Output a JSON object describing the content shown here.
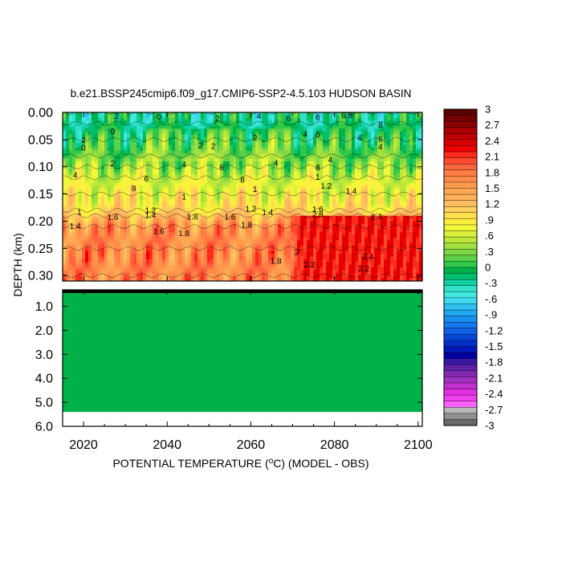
{
  "chart_data": {
    "type": "heatmap",
    "title": "b.e21.BSSP245cmip6.f09_g17.CMIP6-SSP2-4.5.103 HUDSON BASIN",
    "xlabel_prefix": "POTENTIAL TEMPERATURE (",
    "xlabel_unit_sup": "o",
    "xlabel_suffix": "C) (MODEL - OBS)",
    "ylabel": "DEPTH (km)",
    "xlim": [
      2015,
      2101
    ],
    "x_ticks": [
      "2020",
      "2040",
      "2060",
      "2080",
      "2100"
    ],
    "x_tick_values": [
      2020,
      2040,
      2060,
      2080,
      2100
    ],
    "upper_panel": {
      "ylim": [
        0.0,
        0.31
      ],
      "y_ticks": [
        "0.00",
        "0.05",
        "0.10",
        "0.15",
        "0.20",
        "0.25",
        "0.30"
      ],
      "y_tick_values": [
        0.0,
        0.05,
        0.1,
        0.15,
        0.2,
        0.25,
        0.3
      ],
      "depth_profile": [
        {
          "depth": 0.0,
          "value": -0.2
        },
        {
          "depth": 0.02,
          "value": -0.2
        },
        {
          "depth": 0.05,
          "value": 0.0
        },
        {
          "depth": 0.08,
          "value": 0.2
        },
        {
          "depth": 0.1,
          "value": 0.4
        },
        {
          "depth": 0.12,
          "value": 0.6
        },
        {
          "depth": 0.15,
          "value": 0.8
        },
        {
          "depth": 0.18,
          "value": 1.0
        },
        {
          "depth": 0.19,
          "value": 1.2
        },
        {
          "depth": 0.21,
          "value": 1.6
        },
        {
          "depth": 0.25,
          "value": 1.7
        },
        {
          "depth": 0.3,
          "value": 1.7
        }
      ],
      "late_period": {
        "start_year": 2068,
        "deep_value": 2.2
      },
      "contour_labels": [
        {
          "text": "2",
          "x": 2028,
          "y": 0.012
        },
        {
          "text": "0",
          "x": 2038,
          "y": 0.013
        },
        {
          "text": "2",
          "x": 2052,
          "y": 0.016
        },
        {
          "text": "4",
          "x": 2062,
          "y": 0.012
        },
        {
          "text": "6",
          "x": 2069,
          "y": 0.016
        },
        {
          "text": "6",
          "x": 2076,
          "y": 0.014
        },
        {
          "text": "6.8",
          "x": 2083,
          "y": 0.01
        },
        {
          "text": "8",
          "x": 2091,
          "y": 0.028
        },
        {
          "text": "0",
          "x": 2027,
          "y": 0.04
        },
        {
          "text": "2",
          "x": 2020,
          "y": 0.056
        },
        {
          "text": "0",
          "x": 2020,
          "y": 0.07
        },
        {
          "text": "4",
          "x": 2073,
          "y": 0.045
        },
        {
          "text": "6",
          "x": 2076,
          "y": 0.046
        },
        {
          "text": "2",
          "x": 2048,
          "y": 0.066
        },
        {
          "text": "2",
          "x": 2051,
          "y": 0.067
        },
        {
          "text": "2",
          "x": 2061,
          "y": 0.052
        },
        {
          "text": "4",
          "x": 2086,
          "y": 0.052
        },
        {
          "text": "6",
          "x": 2091,
          "y": 0.054
        },
        {
          "text": "4",
          "x": 2091,
          "y": 0.069
        },
        {
          "text": "2",
          "x": 2027,
          "y": 0.099
        },
        {
          "text": "4",
          "x": 2044,
          "y": 0.101
        },
        {
          "text": "6",
          "x": 2053,
          "y": 0.106
        },
        {
          "text": "4",
          "x": 2066,
          "y": 0.098
        },
        {
          "text": "4",
          "x": 2079,
          "y": 0.092
        },
        {
          "text": "8",
          "x": 2076,
          "y": 0.106
        },
        {
          "text": "4",
          "x": 2018,
          "y": 0.12
        },
        {
          "text": "6",
          "x": 2035,
          "y": 0.127
        },
        {
          "text": "8",
          "x": 2058,
          "y": 0.129
        },
        {
          "text": "1",
          "x": 2076,
          "y": 0.124
        },
        {
          "text": "8",
          "x": 2032,
          "y": 0.145
        },
        {
          "text": "1",
          "x": 2061,
          "y": 0.146
        },
        {
          "text": "1.2",
          "x": 2078,
          "y": 0.14
        },
        {
          "text": "1.4",
          "x": 2084,
          "y": 0.15
        },
        {
          "text": "1",
          "x": 2044,
          "y": 0.16
        },
        {
          "text": "1",
          "x": 2019,
          "y": 0.188
        },
        {
          "text": "1.6",
          "x": 2027,
          "y": 0.198
        },
        {
          "text": "1.2",
          "x": 2036,
          "y": 0.185
        },
        {
          "text": "1.4",
          "x": 2036,
          "y": 0.194
        },
        {
          "text": "1.8",
          "x": 2046,
          "y": 0.197
        },
        {
          "text": "1.6",
          "x": 2055,
          "y": 0.197
        },
        {
          "text": "1.2",
          "x": 2060,
          "y": 0.182
        },
        {
          "text": "1.4",
          "x": 2064,
          "y": 0.189
        },
        {
          "text": "1.6",
          "x": 2076,
          "y": 0.183
        },
        {
          "text": "2.8",
          "x": 2076,
          "y": 0.193
        },
        {
          "text": "2.4",
          "x": 2090,
          "y": 0.197
        },
        {
          "text": "1.4",
          "x": 2018,
          "y": 0.214
        },
        {
          "text": "1.8",
          "x": 2059,
          "y": 0.212
        },
        {
          "text": "1.6",
          "x": 2038,
          "y": 0.224
        },
        {
          "text": "1.8",
          "x": 2044,
          "y": 0.227
        },
        {
          "text": "1.8",
          "x": 2066,
          "y": 0.278
        },
        {
          "text": "2",
          "x": 2071,
          "y": 0.262
        },
        {
          "text": "2.2",
          "x": 2074,
          "y": 0.285
        },
        {
          "text": "2.4",
          "x": 2088,
          "y": 0.27
        },
        {
          "text": "2.2",
          "x": 2087,
          "y": 0.292
        }
      ]
    },
    "lower_panel": {
      "ylim": [
        0.31,
        6.0
      ],
      "y_ticks": [
        "1.0",
        "2.0",
        "3.0",
        "4.0",
        "5.0",
        "6.0"
      ],
      "y_tick_values": [
        1.0,
        2.0,
        3.0,
        4.0,
        5.0,
        6.0
      ],
      "fill_value": 0.0,
      "data_bottom": 5.4
    },
    "colorbar": {
      "levels": [
        "3",
        "2.7",
        "2.4",
        "2.1",
        "1.8",
        "1.5",
        "1.2",
        ".9",
        ".6",
        ".3",
        "0",
        "-.3",
        "-.6",
        "-.9",
        "-1.2",
        "-1.5",
        "-1.8",
        "-2.1",
        "-2.4",
        "-2.7",
        "-3"
      ],
      "colors": [
        "#5a0000",
        "#720000",
        "#8c0000",
        "#a60000",
        "#c00000",
        "#d80000",
        "#ee0000",
        "#ff2a1a",
        "#ff4a30",
        "#ff6640",
        "#ff7c44",
        "#ff8c48",
        "#ff9a4c",
        "#ffa652",
        "#ffb25a",
        "#ffbe62",
        "#ffcf5c",
        "#ffe04c",
        "#fff040",
        "#f0f838",
        "#d8f038",
        "#bde838",
        "#a0e040",
        "#80d844",
        "#5cd048",
        "#30c848",
        "#00b048",
        "#00c070",
        "#10d0a0",
        "#30e0c8",
        "#40e8e0",
        "#40d8f0",
        "#30c0f0",
        "#20a8f0",
        "#1890f0",
        "#1878f0",
        "#1060e8",
        "#0848d8",
        "#0030c8",
        "#0018b8",
        "#0000a0",
        "#3818a0",
        "#6020a8",
        "#8028b0",
        "#a030c0",
        "#c030d0",
        "#e030e0",
        "#f040f0",
        "#ff60ff",
        "#b8b8b8",
        "#909090",
        "#686868"
      ]
    }
  }
}
